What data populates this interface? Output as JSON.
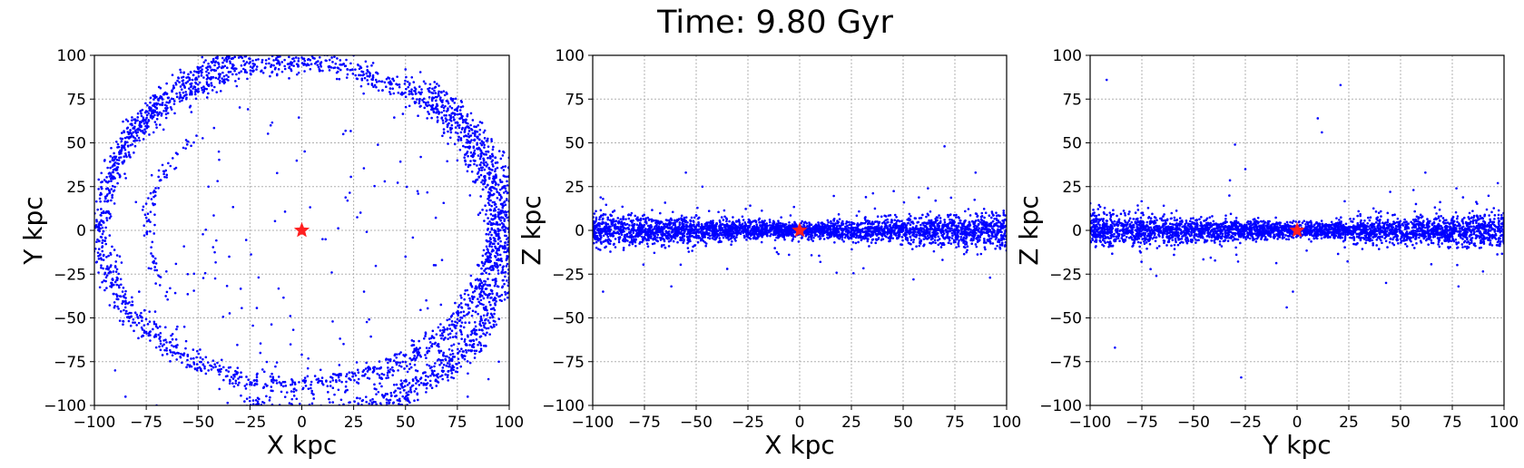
{
  "figure": {
    "title": "Time: 9.80 Gyr"
  },
  "colors": {
    "points": "#0000ff",
    "center": "#ff2020",
    "grid": "#b0b0b0"
  },
  "chart_data": [
    {
      "type": "scatter",
      "xlabel": "X kpc",
      "ylabel": "Y kpc",
      "xlim": [
        -100,
        100
      ],
      "ylim": [
        -100,
        100
      ],
      "grid": true,
      "xticks": [
        "−100",
        "−75",
        "−50",
        "−25",
        "0",
        "25",
        "50",
        "75",
        "100"
      ],
      "yticks": [
        "100",
        "75",
        "50",
        "25",
        "0",
        "−25",
        "−50",
        "−75",
        "−100"
      ],
      "series": [
        {
          "name": "",
          "points": [
            [
              -96,
              5
            ],
            [
              -95,
              -25
            ],
            [
              -90,
              35
            ],
            [
              -85,
              50
            ],
            [
              -78,
              62
            ],
            [
              -70,
              70
            ],
            [
              -55,
              85
            ],
            [
              -40,
              95
            ],
            [
              -25,
              98
            ],
            [
              0,
              102
            ],
            [
              25,
              100
            ],
            [
              50,
              92
            ],
            [
              70,
              78
            ],
            [
              85,
              60
            ],
            [
              92,
              40
            ],
            [
              95,
              10
            ],
            [
              93,
              -20
            ],
            [
              88,
              -45
            ],
            [
              80,
              -60
            ],
            [
              70,
              -72
            ],
            [
              55,
              -80
            ],
            [
              35,
              -88
            ],
            [
              15,
              -90
            ],
            [
              -5,
              -92
            ],
            [
              -25,
              -88
            ],
            [
              -45,
              -80
            ],
            [
              -60,
              -70
            ],
            [
              -75,
              -58
            ],
            [
              -85,
              -42
            ],
            [
              -92,
              -20
            ],
            [
              -40,
              45
            ],
            [
              -45,
              25
            ],
            [
              -35,
              -15
            ],
            [
              -15,
              60
            ],
            [
              20,
              55
            ],
            [
              40,
              28
            ],
            [
              30,
              -35
            ],
            [
              -60,
              -55
            ],
            [
              60,
              -40
            ],
            [
              75,
              40
            ],
            [
              -90,
              -80
            ],
            [
              -85,
              -95
            ],
            [
              -70,
              -100
            ],
            [
              80,
              -95
            ],
            [
              90,
              -85
            ],
            [
              95,
              -75
            ],
            [
              -20,
              -70
            ],
            [
              10,
              -5
            ],
            [
              -55,
              -25
            ],
            [
              50,
              -15
            ]
          ]
        },
        {
          "name": "center",
          "points": [
            [
              0,
              0
            ]
          ]
        }
      ]
    },
    {
      "type": "scatter",
      "xlabel": "X kpc",
      "ylabel": "Z kpc",
      "xlim": [
        -100,
        100
      ],
      "ylim": [
        -100,
        100
      ],
      "grid": true,
      "xticks": [
        "−100",
        "−75",
        "−50",
        "−25",
        "0",
        "25",
        "50",
        "75",
        "100"
      ],
      "yticks": [
        "100",
        "75",
        "50",
        "25",
        "0",
        "−25",
        "−50",
        "−75",
        "−100"
      ],
      "series": [
        {
          "name": "",
          "points": [
            [
              -100,
              0
            ],
            [
              -90,
              5
            ],
            [
              -85,
              -10
            ],
            [
              -80,
              3
            ],
            [
              -70,
              -5
            ],
            [
              -60,
              2
            ],
            [
              -50,
              -3
            ],
            [
              -40,
              4
            ],
            [
              -30,
              -2
            ],
            [
              -20,
              1
            ],
            [
              -10,
              -1
            ],
            [
              0,
              0
            ],
            [
              10,
              2
            ],
            [
              20,
              -3
            ],
            [
              30,
              4
            ],
            [
              40,
              -2
            ],
            [
              50,
              3
            ],
            [
              60,
              -5
            ],
            [
              70,
              6
            ],
            [
              80,
              -8
            ],
            [
              90,
              10
            ],
            [
              100,
              -5
            ],
            [
              -95,
              -35
            ],
            [
              -62,
              -32
            ],
            [
              -55,
              33
            ],
            [
              -47,
              25
            ],
            [
              -35,
              -22
            ],
            [
              -95,
              18
            ],
            [
              32,
              19
            ],
            [
              62,
              24
            ],
            [
              70,
              48
            ],
            [
              85,
              33
            ],
            [
              92,
              -27
            ],
            [
              10,
              -18
            ],
            [
              55,
              -28
            ]
          ]
        },
        {
          "name": "center",
          "points": [
            [
              0,
              0
            ]
          ]
        }
      ]
    },
    {
      "type": "scatter",
      "xlabel": "Y kpc",
      "ylabel": "Z kpc",
      "xlim": [
        -100,
        100
      ],
      "ylim": [
        -100,
        100
      ],
      "grid": true,
      "xticks": [
        "−100",
        "−75",
        "−50",
        "−25",
        "0",
        "25",
        "50",
        "75",
        "100"
      ],
      "yticks": [
        "100",
        "75",
        "50",
        "25",
        "0",
        "−25",
        "−50",
        "−75",
        "−100"
      ],
      "series": [
        {
          "name": "",
          "points": [
            [
              -100,
              0
            ],
            [
              -90,
              3
            ],
            [
              -80,
              -4
            ],
            [
              -70,
              5
            ],
            [
              -60,
              -2
            ],
            [
              -50,
              1
            ],
            [
              -40,
              -3
            ],
            [
              -30,
              4
            ],
            [
              -20,
              -2
            ],
            [
              -10,
              2
            ],
            [
              0,
              0
            ],
            [
              10,
              -3
            ],
            [
              20,
              3
            ],
            [
              30,
              -2
            ],
            [
              40,
              4
            ],
            [
              50,
              -5
            ],
            [
              60,
              3
            ],
            [
              70,
              -4
            ],
            [
              80,
              5
            ],
            [
              90,
              -3
            ],
            [
              100,
              2
            ],
            [
              -92,
              86
            ],
            [
              21,
              83
            ],
            [
              10,
              64
            ],
            [
              12,
              56
            ],
            [
              -30,
              49
            ],
            [
              -25,
              35
            ],
            [
              -68,
              -26
            ],
            [
              -88,
              -67
            ],
            [
              -27,
              -84
            ],
            [
              -5,
              -44
            ],
            [
              -2,
              -35
            ],
            [
              45,
              22
            ],
            [
              62,
              33
            ],
            [
              77,
              24
            ],
            [
              97,
              27
            ],
            [
              78,
              -32
            ],
            [
              43,
              -30
            ]
          ]
        },
        {
          "name": "center",
          "points": [
            [
              0,
              0
            ]
          ]
        }
      ]
    }
  ]
}
